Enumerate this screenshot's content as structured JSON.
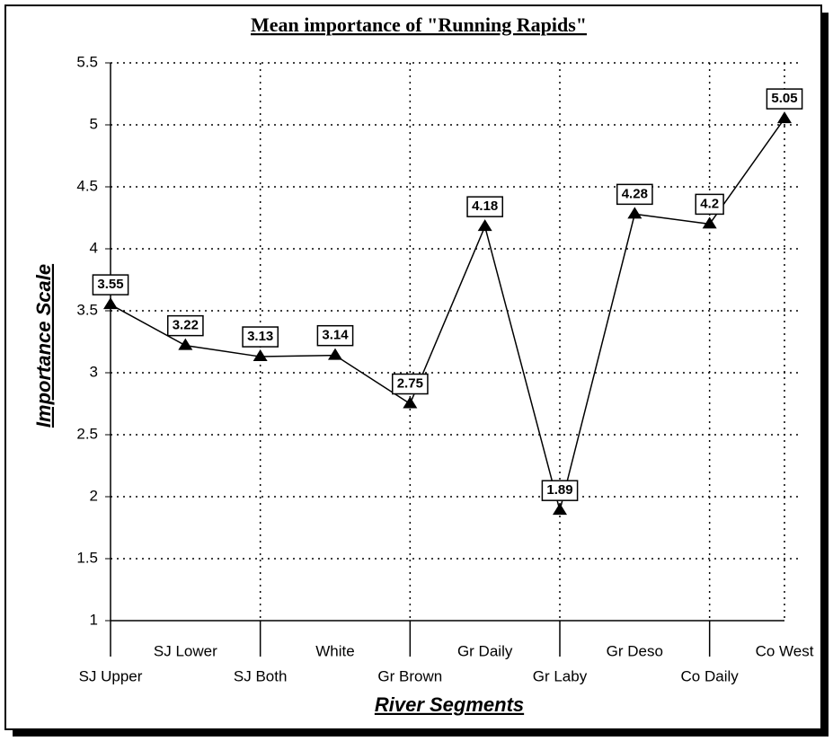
{
  "chart_data": {
    "type": "line",
    "title": "Mean importance of \"Running Rapids\"",
    "xlabel": "River Segments",
    "ylabel": "Importance Scale",
    "categories": [
      "SJ Upper",
      "SJ Lower",
      "SJ Both",
      "White",
      "Gr Brown",
      "Gr Daily",
      "Gr Laby",
      "Gr Deso",
      "Co Daily",
      "Co West"
    ],
    "series": [
      {
        "name": "Running Rapids",
        "color": "#000000",
        "values": [
          3.55,
          3.22,
          3.13,
          3.14,
          2.75,
          4.18,
          1.89,
          4.28,
          4.2,
          5.05
        ]
      }
    ],
    "ylim": [
      1,
      5.5
    ],
    "yticks": [
      1,
      1.5,
      2,
      2.5,
      3,
      3.5,
      4,
      4.5,
      5,
      5.5
    ],
    "grid": true,
    "marker": "triangle",
    "data_labels": true
  }
}
